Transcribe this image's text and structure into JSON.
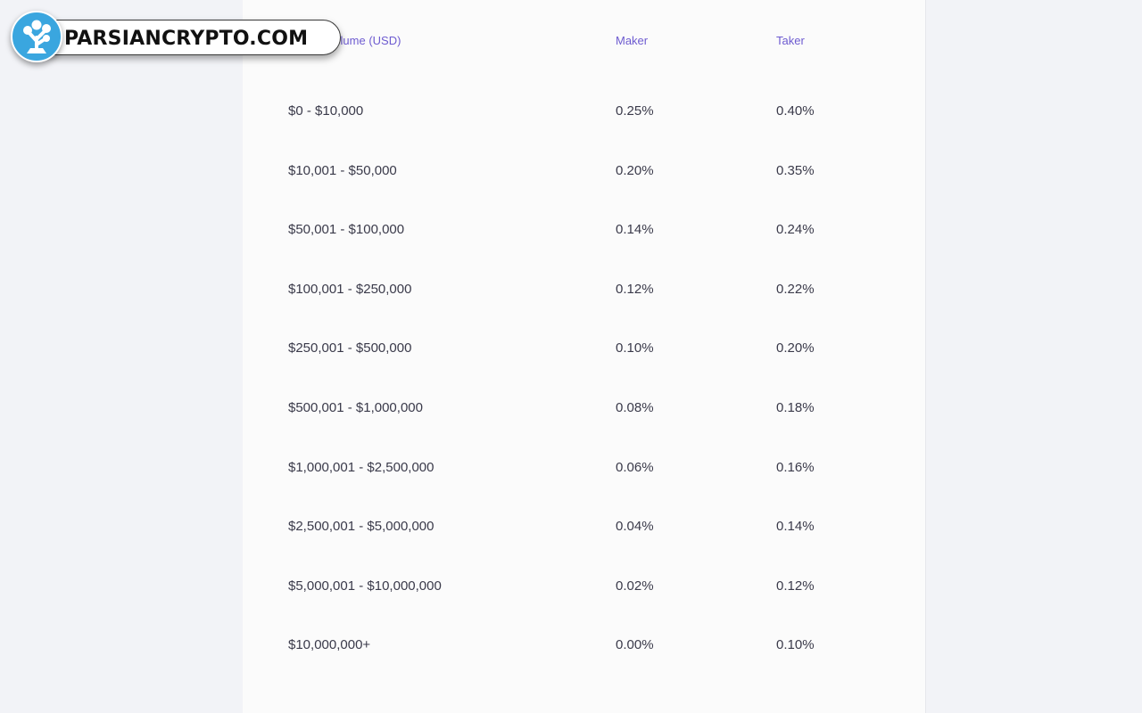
{
  "watermark": {
    "text": "PARSIANCRYPTO.COM"
  },
  "fee_table": {
    "headers": {
      "volume": "30-day Volume (USD)",
      "maker": "Maker",
      "taker": "Taker"
    },
    "rows": [
      {
        "volume": "$0 - $10,000",
        "maker": "0.25%",
        "taker": "0.40%"
      },
      {
        "volume": "$10,001 - $50,000",
        "maker": "0.20%",
        "taker": "0.35%"
      },
      {
        "volume": "$50,001 - $100,000",
        "maker": "0.14%",
        "taker": "0.24%"
      },
      {
        "volume": "$100,001 - $250,000",
        "maker": "0.12%",
        "taker": "0.22%"
      },
      {
        "volume": "$250,001 - $500,000",
        "maker": "0.10%",
        "taker": "0.20%"
      },
      {
        "volume": "$500,001 - $1,000,000",
        "maker": "0.08%",
        "taker": "0.18%"
      },
      {
        "volume": "$1,000,001 - $2,500,000",
        "maker": "0.06%",
        "taker": "0.16%"
      },
      {
        "volume": "$2,500,001 - $5,000,000",
        "maker": "0.04%",
        "taker": "0.14%"
      },
      {
        "volume": "$5,000,001 - $10,000,000",
        "maker": "0.02%",
        "taker": "0.12%"
      },
      {
        "volume": "$10,000,000+",
        "maker": "0.00%",
        "taker": "0.10%"
      }
    ]
  },
  "colors": {
    "page_background": "#f2f3f7",
    "card_background": "#fbfbfb",
    "header_text": "#6d5bd0",
    "cell_text": "#3a3a4a",
    "logo_circle": "#3aa6df"
  }
}
